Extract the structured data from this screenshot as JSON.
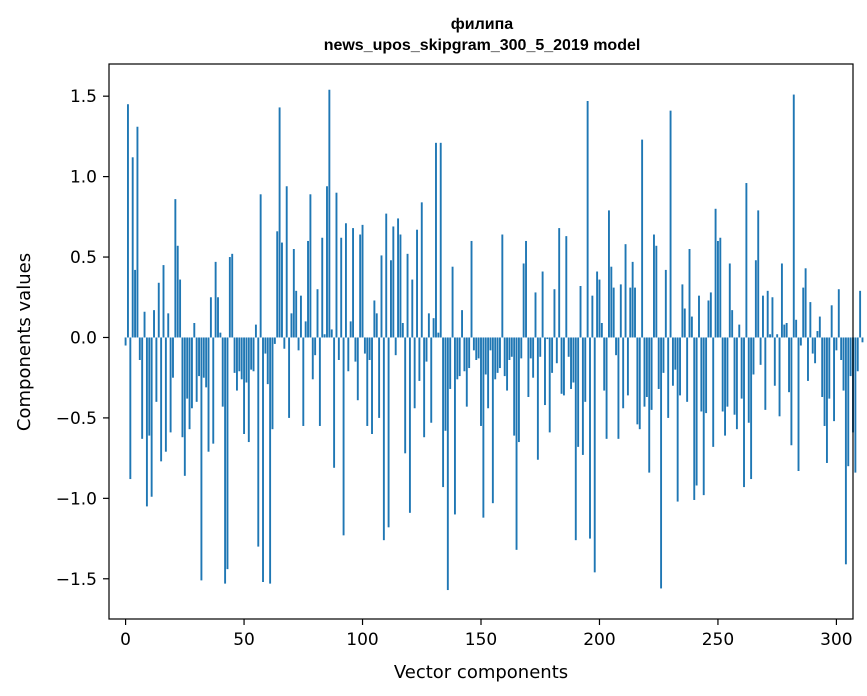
{
  "chart_data": {
    "type": "bar",
    "title": "филипа",
    "subtitle": "news_upos_skipgram_300_5_2019 model",
    "xlabel": "Vector components",
    "ylabel": "Components values",
    "xlim": [
      -7,
      307
    ],
    "ylim": [
      -1.75,
      1.7
    ],
    "xticks": [
      0,
      50,
      100,
      150,
      200,
      250,
      300
    ],
    "xtick_labels": [
      "0",
      "50",
      "100",
      "150",
      "200",
      "250",
      "300"
    ],
    "yticks": [
      -1.5,
      -1.0,
      -0.5,
      0.0,
      0.5,
      1.0,
      1.5
    ],
    "ytick_labels": [
      "−1.5",
      "−1.0",
      "−0.5",
      "0.0",
      "0.5",
      "1.0",
      "1.5"
    ],
    "grid": false,
    "bar_color": "#1f77b4",
    "values": [
      -0.05,
      1.45,
      -0.88,
      1.12,
      0.42,
      1.31,
      -0.14,
      -0.63,
      0.16,
      -1.05,
      -0.61,
      -0.99,
      0.17,
      -0.4,
      0.34,
      -0.77,
      0.45,
      -0.71,
      0.15,
      -0.59,
      -0.25,
      0.86,
      0.57,
      0.36,
      -0.62,
      -0.86,
      -0.38,
      -0.57,
      -0.44,
      0.09,
      -0.4,
      -0.24,
      -1.51,
      -0.25,
      -0.31,
      -0.71,
      0.25,
      -0.66,
      0.47,
      0.25,
      0.03,
      -0.43,
      -1.53,
      -1.44,
      0.5,
      0.52,
      -0.22,
      -0.33,
      -0.21,
      -0.26,
      -0.6,
      -0.28,
      -0.65,
      -0.2,
      -0.21,
      0.08,
      -1.3,
      0.89,
      -1.52,
      -0.1,
      -0.29,
      -1.53,
      -0.57,
      -0.04,
      0.66,
      1.43,
      0.59,
      -0.07,
      0.94,
      -0.5,
      0.15,
      0.55,
      0.29,
      -0.08,
      0.26,
      -0.55,
      0.1,
      0.6,
      0.89,
      -0.26,
      -0.11,
      0.3,
      -0.55,
      0.62,
      0.02,
      0.94,
      1.54,
      0.05,
      -0.81,
      0.9,
      -0.14,
      0.62,
      -1.23,
      0.71,
      -0.21,
      0.1,
      0.68,
      -0.15,
      -0.39,
      0.64,
      0.7,
      -0.1,
      -0.55,
      -0.14,
      -0.6,
      0.23,
      0.15,
      -0.5,
      0.51,
      -1.26,
      0.77,
      -1.18,
      0.48,
      0.69,
      -0.11,
      0.74,
      0.64,
      0.09,
      -0.72,
      0.52,
      -1.09,
      0.36,
      -0.44,
      0.67,
      -0.27,
      0.84,
      -0.62,
      -0.15,
      0.15,
      -0.53,
      0.12,
      1.21,
      0.03,
      1.21,
      -0.93,
      -0.58,
      -1.57,
      -0.32,
      0.44,
      -1.1,
      -0.26,
      -0.24,
      0.17,
      -0.21,
      -0.43,
      -0.19,
      0.6,
      -0.08,
      -0.14,
      -0.13,
      -0.55,
      -1.12,
      -0.23,
      -0.44,
      -0.08,
      -1.03,
      -0.26,
      -0.22,
      -0.19,
      0.64,
      -0.24,
      -0.33,
      -0.14,
      -0.12,
      -0.61,
      -1.32,
      -0.65,
      -0.13,
      0.46,
      0.6,
      -0.37,
      -0.13,
      -0.25,
      0.28,
      -0.76,
      -0.12,
      0.41,
      -0.42,
      -0.01,
      -0.59,
      -0.22,
      0.3,
      -0.16,
      0.68,
      -0.35,
      -0.36,
      0.63,
      -0.12,
      -0.32,
      -0.28,
      -1.26,
      -0.68,
      0.32,
      -0.73,
      -0.4,
      1.47,
      -1.25,
      0.26,
      -1.46,
      0.41,
      0.36,
      0.09,
      -0.33,
      -0.63,
      0.79,
      0.44,
      0.31,
      -0.11,
      -0.63,
      0.33,
      -0.44,
      0.58,
      -0.36,
      0.31,
      0.47,
      0.31,
      -0.54,
      -0.57,
      1.23,
      -0.43,
      -0.37,
      -0.84,
      -0.45,
      0.64,
      0.57,
      -0.32,
      -1.56,
      -0.22,
      0.42,
      -0.5,
      1.41,
      -0.3,
      -0.2,
      -1.02,
      -0.36,
      0.33,
      0.18,
      -0.4,
      0.55,
      0.13,
      -1.01,
      -0.92,
      0.26,
      -0.46,
      -0.98,
      -0.47,
      0.23,
      0.28,
      -0.68,
      0.8,
      0.6,
      0.62,
      -0.46,
      -0.61,
      -0.43,
      0.46,
      0.17,
      -0.48,
      -0.57,
      0.08,
      -0.38,
      -0.93,
      0.96,
      -0.53,
      -0.88,
      -0.23,
      0.48,
      0.79,
      -0.17,
      0.26,
      -0.45,
      0.29,
      0.02,
      0.25,
      -0.3,
      0.02,
      -0.49,
      0.46,
      0.08,
      0.09,
      -0.34,
      -0.67,
      1.51,
      0.11,
      -0.83,
      -0.05,
      0.31,
      0.43,
      -0.27,
      0.22,
      -0.1,
      -0.16,
      0.04,
      0.13,
      -0.37,
      -0.55,
      -0.78,
      -0.38,
      0.2,
      -0.52,
      -0.08,
      0.3,
      -0.14,
      -0.33,
      -1.41,
      -0.8,
      -0.24,
      -0.59,
      -0.84,
      -0.21,
      0.29,
      -0.03
    ]
  }
}
